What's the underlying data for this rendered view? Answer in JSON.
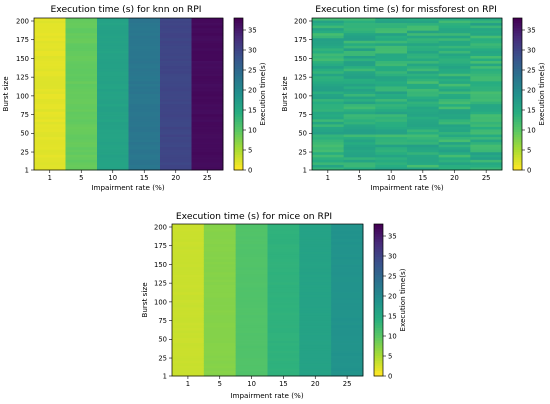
{
  "colorbar_label": "Execution time(s)",
  "colorbar_ticks": [
    0,
    5,
    10,
    15,
    20,
    25,
    30,
    35
  ],
  "colormap": "viridis_r",
  "chart_data": [
    {
      "type": "heatmap",
      "title": "Execution time (s) for knn on RPI",
      "xlabel": "Impairment rate (%)",
      "ylabel": "Burst size",
      "x": [
        "1",
        "5",
        "10",
        "15",
        "20",
        "25"
      ],
      "yticks": [
        1,
        25,
        50,
        75,
        100,
        125,
        150,
        175,
        200
      ],
      "ylim": [
        1,
        200
      ],
      "clim": [
        0,
        38
      ],
      "column_values": [
        1.5,
        9,
        16,
        23,
        30,
        37
      ]
    },
    {
      "type": "heatmap",
      "title": "Execution time (s) for missforest on RPI",
      "xlabel": "Impairment rate (%)",
      "ylabel": "Burst size",
      "x": [
        "1",
        "5",
        "10",
        "15",
        "20",
        "25"
      ],
      "yticks": [
        1,
        25,
        50,
        75,
        100,
        125,
        150,
        175,
        200
      ],
      "ylim": [
        1,
        200
      ],
      "clim": [
        0,
        38
      ],
      "column_values": [
        14,
        14,
        14,
        14,
        14,
        14
      ]
    },
    {
      "type": "heatmap",
      "title": "Execution time (s) for mice on RPI",
      "xlabel": "Impairment rate (%)",
      "ylabel": "Burst size",
      "x": [
        "1",
        "5",
        "10",
        "15",
        "20",
        "25"
      ],
      "yticks": [
        1,
        25,
        50,
        75,
        100,
        125,
        150,
        175,
        200
      ],
      "ylim": [
        1,
        200
      ],
      "clim": [
        0,
        38
      ],
      "column_values": [
        3,
        7,
        10.5,
        13.5,
        16,
        18.5
      ]
    }
  ]
}
